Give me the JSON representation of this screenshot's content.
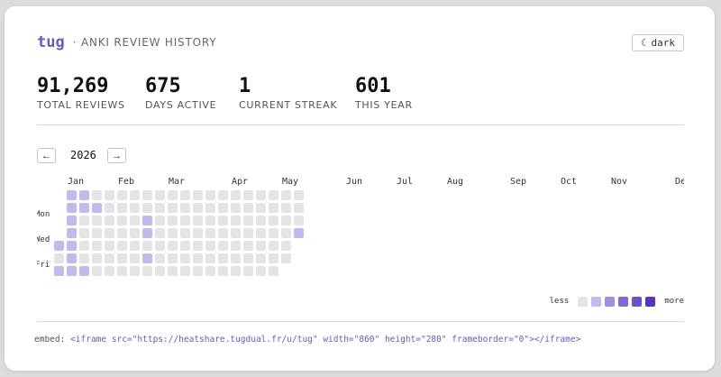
{
  "header": {
    "brand": "tug",
    "subtitle": "· ANKI REVIEW HISTORY",
    "theme_toggle": {
      "icon": "moon-icon",
      "glyph": "☾",
      "label": "dark"
    }
  },
  "stats": [
    {
      "value": "91,269",
      "label": "TOTAL REVIEWS"
    },
    {
      "value": "675",
      "label": "DAYS ACTIVE"
    },
    {
      "value": "1",
      "label": "CURRENT STREAK"
    },
    {
      "value": "601",
      "label": "THIS YEAR"
    }
  ],
  "nav": {
    "prev_label": "←",
    "year": "2026",
    "next_label": "→"
  },
  "heatmap": {
    "months": [
      "Jan",
      "Feb",
      "Mar",
      "Apr",
      "May",
      "Jun",
      "Jul",
      "Aug",
      "Sep",
      "Oct",
      "Nov",
      "Dec"
    ],
    "weekdays": [
      "Mon",
      "Wed",
      "Fri"
    ],
    "colors": [
      "#e4e4e4",
      "#c4b9ef",
      "#9f8de2",
      "#7f69d8",
      "#6a52cf",
      "#5436c0"
    ],
    "weeks": [
      [
        -1,
        -1,
        -1,
        -1,
        1,
        0,
        1
      ],
      [
        1,
        1,
        1,
        1,
        1,
        1,
        1
      ],
      [
        1,
        1,
        0,
        0,
        0,
        0,
        1
      ],
      [
        0,
        1,
        0,
        0,
        0,
        0,
        0
      ],
      [
        0,
        0,
        0,
        0,
        0,
        0,
        0
      ],
      [
        0,
        0,
        0,
        0,
        0,
        0,
        0
      ],
      [
        0,
        0,
        0,
        0,
        0,
        0,
        0
      ],
      [
        0,
        0,
        1,
        1,
        0,
        1,
        0
      ],
      [
        0,
        0,
        0,
        0,
        0,
        0,
        0
      ],
      [
        0,
        0,
        0,
        0,
        0,
        0,
        0
      ],
      [
        0,
        0,
        0,
        0,
        0,
        0,
        0
      ],
      [
        0,
        0,
        0,
        0,
        0,
        0,
        0
      ],
      [
        0,
        0,
        0,
        0,
        0,
        0,
        0
      ],
      [
        0,
        0,
        0,
        0,
        0,
        0,
        0
      ],
      [
        0,
        0,
        0,
        0,
        0,
        0,
        0
      ],
      [
        0,
        0,
        0,
        0,
        0,
        0,
        0
      ],
      [
        0,
        0,
        0,
        0,
        0,
        0,
        0
      ],
      [
        0,
        0,
        0,
        0,
        0,
        0,
        0
      ],
      [
        0,
        0,
        0,
        0,
        0,
        0,
        -1
      ],
      [
        0,
        0,
        0,
        1,
        -1,
        -1,
        -1
      ]
    ]
  },
  "legend": {
    "less_label": "less",
    "more_label": "more"
  },
  "embed": {
    "label": "embed:",
    "code": "<iframe src=\"https://heatshare.tugdual.fr/u/tug\" width=\"860\" height=\"280\" frameborder=\"0\"></iframe>"
  }
}
